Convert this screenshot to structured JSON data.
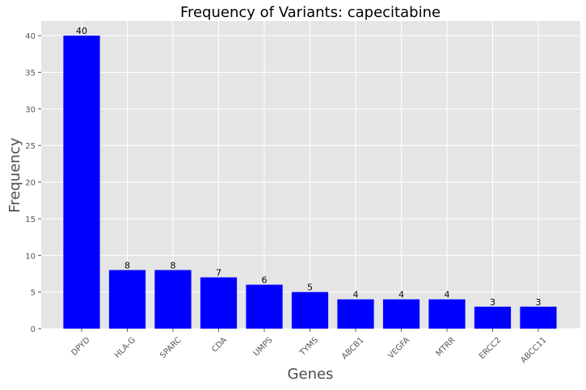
{
  "chart_data": {
    "type": "bar",
    "title": "Frequency of Variants: capecitabine",
    "xlabel": "Genes",
    "ylabel": "Frequency",
    "categories": [
      "DPYD",
      "HLA-G",
      "SPARC",
      "CDA",
      "UMPS",
      "TYMS",
      "ABCB1",
      "VEGFA",
      "MTRR",
      "ERCC2",
      "ABCC11"
    ],
    "values": [
      40,
      8,
      8,
      7,
      6,
      5,
      4,
      4,
      4,
      3,
      3
    ],
    "ylim": [
      0,
      42
    ],
    "yticks": [
      0,
      5,
      10,
      15,
      20,
      25,
      30,
      35,
      40
    ],
    "grid": true,
    "bar_color": "#0000ff",
    "background_color": "#e5e5e5",
    "grid_color": "#ffffff"
  }
}
